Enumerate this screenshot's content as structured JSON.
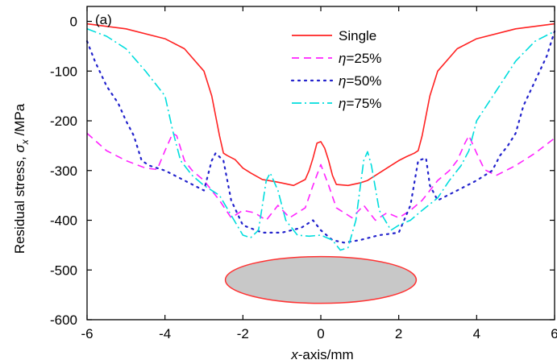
{
  "chart_data": {
    "type": "line",
    "panel_label": "(a)",
    "xlabel_italic": "x",
    "xlabel_rest": "-axis/mm",
    "ylabel_main": "Residual stress, ",
    "ylabel_sym": "σ",
    "ylabel_sub": "x",
    "ylabel_unit": " /MPa",
    "xlim": [
      -6,
      6
    ],
    "ylim": [
      -600,
      30
    ],
    "xticks": [
      -6,
      -4,
      -2,
      0,
      2,
      4,
      6
    ],
    "xtick_labels": [
      "-6",
      "-4",
      "-2",
      "0",
      "2",
      "4",
      "6"
    ],
    "yticks": [
      0,
      -100,
      -200,
      -300,
      -400,
      -500,
      -600
    ],
    "ytick_labels": [
      "0",
      "-100",
      "-200",
      "-300",
      "-400",
      "-500",
      "-600"
    ],
    "grid": false,
    "legend_position": "top-center",
    "inset_ellipse": {
      "cx": 0,
      "cy": -520,
      "rx": 2.45,
      "ry": 47,
      "fill": "#c8c8c8",
      "stroke": "#ff3333"
    },
    "series": [
      {
        "name": "Single",
        "name_greek": "",
        "color": "#ff2222",
        "dash": "",
        "x": [
          -6,
          -5,
          -4,
          -3.5,
          -3,
          -2.8,
          -2.6,
          -2.5,
          -2.4,
          -2.2,
          -2,
          -1.8,
          -1.5,
          -1.2,
          -1,
          -0.7,
          -0.4,
          -0.3,
          -0.2,
          -0.1,
          0,
          0.1,
          0.2,
          0.3,
          0.4,
          0.7,
          1,
          1.2,
          1.5,
          1.8,
          2,
          2.2,
          2.4,
          2.5,
          2.6,
          2.8,
          3,
          3.5,
          4,
          5,
          6
        ],
        "y": [
          -5,
          -15,
          -35,
          -55,
          -100,
          -150,
          -230,
          -265,
          -270,
          -278,
          -295,
          -305,
          -318,
          -322,
          -325,
          -330,
          -318,
          -300,
          -275,
          -245,
          -242,
          -255,
          -280,
          -310,
          -328,
          -330,
          -325,
          -320,
          -305,
          -290,
          -280,
          -272,
          -265,
          -260,
          -230,
          -150,
          -100,
          -55,
          -35,
          -15,
          -5
        ]
      },
      {
        "name": "=25%",
        "name_greek": "η",
        "color": "#ff22ff",
        "dash": "9,6",
        "x": [
          -6,
          -5.5,
          -5,
          -4.5,
          -4.2,
          -4,
          -3.8,
          -3.7,
          -3.5,
          -3.3,
          -3,
          -2.6,
          -2.3,
          -2,
          -1.7,
          -1.4,
          -1.1,
          -0.8,
          -0.6,
          -0.4,
          -0.2,
          0,
          0.2,
          0.4,
          0.6,
          0.8,
          1.1,
          1.4,
          1.7,
          2,
          2.3,
          2.6,
          3,
          3.3,
          3.5,
          3.7,
          3.8,
          4,
          4.2,
          4.5,
          5,
          5.5,
          6
        ],
        "y": [
          -225,
          -260,
          -280,
          -295,
          -298,
          -260,
          -225,
          -230,
          -280,
          -300,
          -320,
          -360,
          -395,
          -380,
          -385,
          -400,
          -370,
          -395,
          -385,
          -375,
          -330,
          -288,
          -330,
          -375,
          -385,
          -395,
          -370,
          -400,
          -385,
          -395,
          -380,
          -360,
          -320,
          -300,
          -280,
          -245,
          -230,
          -265,
          -298,
          -310,
          -290,
          -265,
          -235
        ]
      },
      {
        "name": "=50%",
        "name_greek": "η",
        "color": "#2222cc",
        "dash": "2,6",
        "x": [
          -6,
          -5.8,
          -5.5,
          -5.2,
          -5,
          -4.8,
          -4.6,
          -4.4,
          -4,
          -3.5,
          -3,
          -2.8,
          -2.7,
          -2.5,
          -2.3,
          -2,
          -1.5,
          -1,
          -0.5,
          -0.2,
          0,
          0.3,
          0.6,
          1,
          1.5,
          2,
          2.3,
          2.5,
          2.7,
          2.8,
          3,
          3.5,
          4,
          4.4,
          4.6,
          4.8,
          5,
          5.2,
          5.5,
          5.8,
          6
        ],
        "y": [
          -40,
          -80,
          -130,
          -165,
          -200,
          -230,
          -280,
          -290,
          -300,
          -320,
          -340,
          -280,
          -265,
          -280,
          -360,
          -410,
          -425,
          -425,
          -415,
          -400,
          -420,
          -440,
          -445,
          -440,
          -430,
          -425,
          -370,
          -280,
          -275,
          -330,
          -360,
          -340,
          -320,
          -300,
          -270,
          -250,
          -225,
          -170,
          -120,
          -70,
          -20
        ]
      },
      {
        "name": "=75%",
        "name_greek": "η",
        "color": "#00dddd",
        "dash": "12,4,2,4",
        "x": [
          -6,
          -5.5,
          -5,
          -4.5,
          -4,
          -3.8,
          -3.6,
          -3.3,
          -3,
          -2.6,
          -2.3,
          -2,
          -1.8,
          -1.6,
          -1.4,
          -1.3,
          -1.1,
          -0.9,
          -0.6,
          -0.3,
          0,
          0.3,
          0.5,
          0.7,
          0.9,
          1.1,
          1.2,
          1.3,
          1.5,
          1.8,
          2,
          2.3,
          2.6,
          3,
          3.3,
          3.6,
          3.8,
          4,
          4.5,
          5,
          5.5,
          6
        ],
        "y": [
          -15,
          -30,
          -55,
          -100,
          -150,
          -220,
          -280,
          -310,
          -330,
          -350,
          -390,
          -430,
          -435,
          -420,
          -320,
          -305,
          -340,
          -400,
          -430,
          -432,
          -430,
          -440,
          -460,
          -455,
          -400,
          -280,
          -262,
          -290,
          -380,
          -420,
          -410,
          -400,
          -380,
          -355,
          -320,
          -290,
          -260,
          -200,
          -140,
          -80,
          -40,
          -20
        ]
      }
    ]
  }
}
